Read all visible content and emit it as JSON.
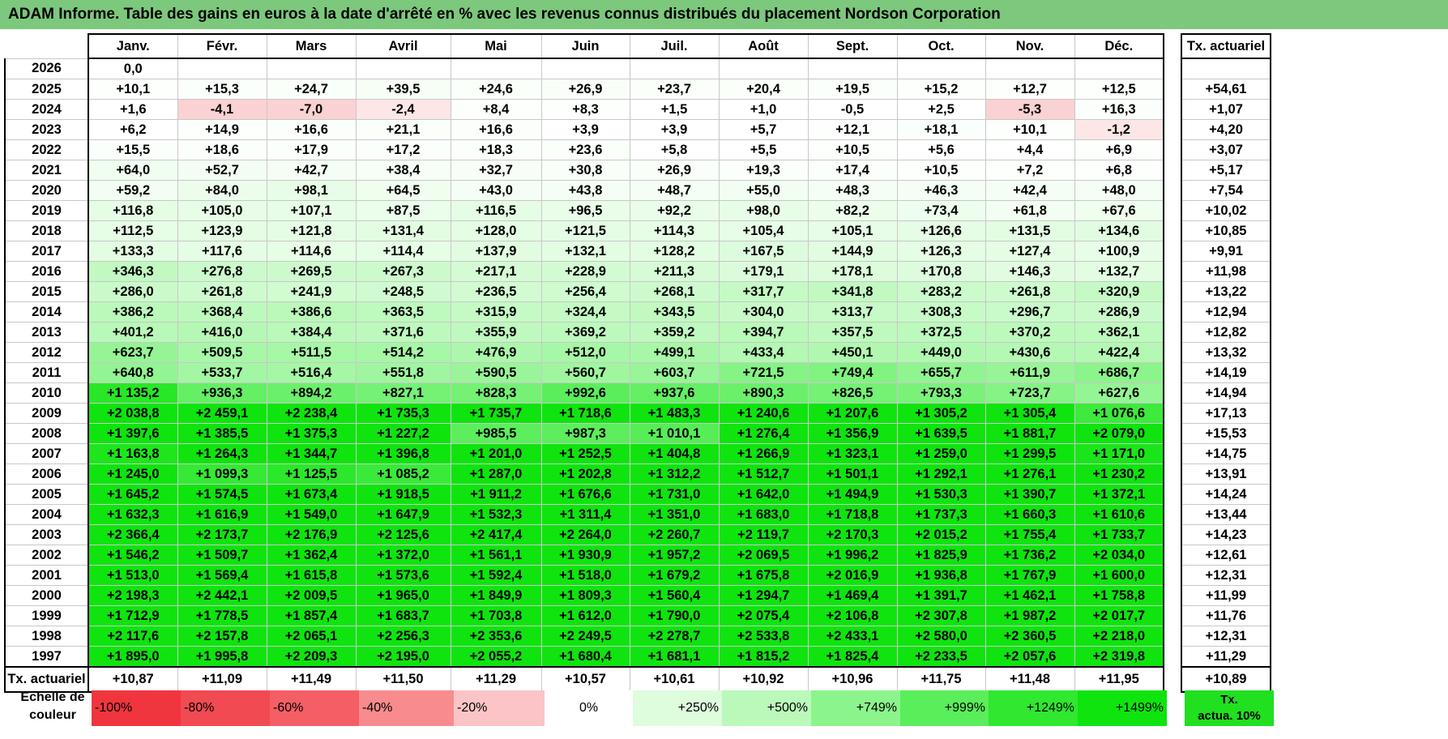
{
  "title": "ADAM Informe. Table des gains en euros à la date d'arrêté en % avec les revenus connus distribués du placement Nordson Corporation",
  "table": {
    "months": [
      "Janv.",
      "Févr.",
      "Mars",
      "Avril",
      "Mai",
      "Juin",
      "Juil.",
      "Août",
      "Sept.",
      "Oct.",
      "Nov.",
      "Déc."
    ],
    "annual_header": "Tx. actuariel",
    "rows": [
      {
        "year": "2026",
        "values": [
          "0,0",
          "",
          "",
          "",
          "",
          "",
          "",
          "",
          "",
          "",
          "",
          ""
        ],
        "annual": ""
      },
      {
        "year": "2025",
        "values": [
          "+10,1",
          "+15,3",
          "+24,7",
          "+39,5",
          "+24,6",
          "+26,9",
          "+23,7",
          "+20,4",
          "+19,5",
          "+15,2",
          "+12,7",
          "+12,5"
        ],
        "annual": "+54,61"
      },
      {
        "year": "2024",
        "values": [
          "+1,6",
          "-4,1",
          "-7,0",
          "-2,4",
          "+8,4",
          "+8,3",
          "+1,5",
          "+1,0",
          "-0,5",
          "+2,5",
          "-5,3",
          "+16,3"
        ],
        "annual": "+1,07"
      },
      {
        "year": "2023",
        "values": [
          "+6,2",
          "+14,9",
          "+16,6",
          "+21,1",
          "+16,6",
          "+3,9",
          "+3,9",
          "+5,7",
          "+12,1",
          "+18,1",
          "+10,1",
          "-1,2"
        ],
        "annual": "+4,20"
      },
      {
        "year": "2022",
        "values": [
          "+15,5",
          "+18,6",
          "+17,9",
          "+17,2",
          "+18,3",
          "+23,6",
          "+5,8",
          "+5,5",
          "+10,5",
          "+5,6",
          "+4,4",
          "+6,9"
        ],
        "annual": "+3,07"
      },
      {
        "year": "2021",
        "values": [
          "+64,0",
          "+52,7",
          "+42,7",
          "+38,4",
          "+32,7",
          "+30,8",
          "+26,9",
          "+19,3",
          "+17,4",
          "+10,5",
          "+7,2",
          "+6,8"
        ],
        "annual": "+5,17"
      },
      {
        "year": "2020",
        "values": [
          "+59,2",
          "+84,0",
          "+98,1",
          "+64,5",
          "+43,0",
          "+43,8",
          "+48,7",
          "+55,0",
          "+48,3",
          "+46,3",
          "+42,4",
          "+48,0"
        ],
        "annual": "+7,54"
      },
      {
        "year": "2019",
        "values": [
          "+116,8",
          "+105,0",
          "+107,1",
          "+87,5",
          "+116,5",
          "+96,5",
          "+92,2",
          "+98,0",
          "+82,2",
          "+73,4",
          "+61,8",
          "+67,6"
        ],
        "annual": "+10,02"
      },
      {
        "year": "2018",
        "values": [
          "+112,5",
          "+123,9",
          "+121,8",
          "+131,4",
          "+128,0",
          "+121,5",
          "+114,3",
          "+105,4",
          "+105,1",
          "+126,6",
          "+131,5",
          "+134,6"
        ],
        "annual": "+10,85"
      },
      {
        "year": "2017",
        "values": [
          "+133,3",
          "+117,6",
          "+114,6",
          "+114,4",
          "+137,9",
          "+132,1",
          "+128,2",
          "+167,5",
          "+144,9",
          "+126,3",
          "+127,4",
          "+100,9"
        ],
        "annual": "+9,91"
      },
      {
        "year": "2016",
        "values": [
          "+346,3",
          "+276,8",
          "+269,5",
          "+267,3",
          "+217,1",
          "+228,9",
          "+211,3",
          "+179,1",
          "+178,1",
          "+170,8",
          "+146,3",
          "+132,7"
        ],
        "annual": "+11,98"
      },
      {
        "year": "2015",
        "values": [
          "+286,0",
          "+261,8",
          "+241,9",
          "+248,5",
          "+236,5",
          "+256,4",
          "+268,1",
          "+317,7",
          "+341,8",
          "+283,2",
          "+261,8",
          "+320,9"
        ],
        "annual": "+13,22"
      },
      {
        "year": "2014",
        "values": [
          "+386,2",
          "+368,4",
          "+386,6",
          "+363,5",
          "+315,9",
          "+324,4",
          "+343,5",
          "+304,0",
          "+313,7",
          "+308,3",
          "+296,7",
          "+286,9"
        ],
        "annual": "+12,94"
      },
      {
        "year": "2013",
        "values": [
          "+401,2",
          "+416,0",
          "+384,4",
          "+371,6",
          "+355,9",
          "+369,2",
          "+359,2",
          "+394,7",
          "+357,5",
          "+372,5",
          "+370,2",
          "+362,1"
        ],
        "annual": "+12,82"
      },
      {
        "year": "2012",
        "values": [
          "+623,7",
          "+509,5",
          "+511,5",
          "+514,2",
          "+476,9",
          "+512,0",
          "+499,1",
          "+433,4",
          "+450,1",
          "+449,0",
          "+430,6",
          "+422,4"
        ],
        "annual": "+13,32"
      },
      {
        "year": "2011",
        "values": [
          "+640,8",
          "+533,7",
          "+516,4",
          "+551,8",
          "+590,5",
          "+560,7",
          "+603,7",
          "+721,5",
          "+749,4",
          "+655,7",
          "+611,9",
          "+686,7"
        ],
        "annual": "+14,19"
      },
      {
        "year": "2010",
        "values": [
          "+1 135,2",
          "+936,3",
          "+894,2",
          "+827,1",
          "+828,3",
          "+992,6",
          "+937,6",
          "+890,3",
          "+826,5",
          "+793,3",
          "+723,7",
          "+627,6"
        ],
        "annual": "+14,94"
      },
      {
        "year": "2009",
        "values": [
          "+2 038,8",
          "+2 459,1",
          "+2 238,4",
          "+1 735,3",
          "+1 735,7",
          "+1 718,6",
          "+1 483,3",
          "+1 240,6",
          "+1 207,6",
          "+1 305,2",
          "+1 305,4",
          "+1 076,6"
        ],
        "annual": "+17,13"
      },
      {
        "year": "2008",
        "values": [
          "+1 397,6",
          "+1 385,5",
          "+1 375,3",
          "+1 227,2",
          "+985,5",
          "+987,3",
          "+1 010,1",
          "+1 276,4",
          "+1 356,9",
          "+1 639,5",
          "+1 881,7",
          "+2 079,0"
        ],
        "annual": "+15,53"
      },
      {
        "year": "2007",
        "values": [
          "+1 163,8",
          "+1 264,3",
          "+1 344,7",
          "+1 396,8",
          "+1 201,0",
          "+1 252,5",
          "+1 404,8",
          "+1 266,9",
          "+1 323,1",
          "+1 259,0",
          "+1 299,5",
          "+1 171,0"
        ],
        "annual": "+14,75"
      },
      {
        "year": "2006",
        "values": [
          "+1 245,0",
          "+1 099,3",
          "+1 125,5",
          "+1 085,2",
          "+1 287,0",
          "+1 202,8",
          "+1 312,2",
          "+1 512,7",
          "+1 501,1",
          "+1 292,1",
          "+1 276,1",
          "+1 230,2"
        ],
        "annual": "+13,91"
      },
      {
        "year": "2005",
        "values": [
          "+1 645,2",
          "+1 574,5",
          "+1 673,4",
          "+1 918,5",
          "+1 911,2",
          "+1 676,6",
          "+1 731,0",
          "+1 642,0",
          "+1 494,9",
          "+1 530,3",
          "+1 390,7",
          "+1 372,1"
        ],
        "annual": "+14,24"
      },
      {
        "year": "2004",
        "values": [
          "+1 632,3",
          "+1 616,9",
          "+1 549,0",
          "+1 647,9",
          "+1 532,3",
          "+1 311,4",
          "+1 351,0",
          "+1 683,0",
          "+1 718,8",
          "+1 737,3",
          "+1 660,3",
          "+1 610,6"
        ],
        "annual": "+13,44"
      },
      {
        "year": "2003",
        "values": [
          "+2 366,4",
          "+2 173,7",
          "+2 176,9",
          "+2 125,6",
          "+2 417,4",
          "+2 264,0",
          "+2 260,7",
          "+2 119,7",
          "+2 170,3",
          "+2 015,2",
          "+1 755,4",
          "+1 733,7"
        ],
        "annual": "+14,23"
      },
      {
        "year": "2002",
        "values": [
          "+1 546,2",
          "+1 509,7",
          "+1 362,4",
          "+1 372,0",
          "+1 561,1",
          "+1 930,9",
          "+1 957,2",
          "+2 069,5",
          "+1 996,2",
          "+1 825,9",
          "+1 736,2",
          "+2 034,0"
        ],
        "annual": "+12,61"
      },
      {
        "year": "2001",
        "values": [
          "+1 513,0",
          "+1 569,4",
          "+1 615,8",
          "+1 573,6",
          "+1 592,4",
          "+1 518,0",
          "+1 679,2",
          "+1 675,8",
          "+2 016,9",
          "+1 936,8",
          "+1 767,9",
          "+1 600,0"
        ],
        "annual": "+12,31"
      },
      {
        "year": "2000",
        "values": [
          "+2 198,3",
          "+2 442,1",
          "+2 009,5",
          "+1 965,0",
          "+1 849,9",
          "+1 809,3",
          "+1 560,4",
          "+1 294,7",
          "+1 469,4",
          "+1 391,7",
          "+1 462,1",
          "+1 758,8"
        ],
        "annual": "+11,99"
      },
      {
        "year": "1999",
        "values": [
          "+1 712,9",
          "+1 778,5",
          "+1 857,4",
          "+1 683,7",
          "+1 703,8",
          "+1 612,0",
          "+1 790,0",
          "+2 075,4",
          "+2 106,8",
          "+2 307,8",
          "+1 987,2",
          "+2 017,7"
        ],
        "annual": "+11,76"
      },
      {
        "year": "1998",
        "values": [
          "+2 117,6",
          "+2 157,8",
          "+2 065,1",
          "+2 256,3",
          "+2 353,6",
          "+2 249,5",
          "+2 278,7",
          "+2 533,8",
          "+2 433,1",
          "+2 580,0",
          "+2 360,5",
          "+2 218,0"
        ],
        "annual": "+12,31"
      },
      {
        "year": "1997",
        "values": [
          "+1 895,0",
          "+1 995,8",
          "+2 209,3",
          "+2 195,0",
          "+2 055,2",
          "+1 680,4",
          "+1 681,1",
          "+1 815,2",
          "+1 825,4",
          "+2 233,5",
          "+2 057,6",
          "+2 319,8"
        ],
        "annual": "+11,29"
      }
    ],
    "footer": {
      "label": "Tx. actuariel",
      "values": [
        "+10,87",
        "+11,09",
        "+11,49",
        "+11,50",
        "+11,29",
        "+10,57",
        "+10,61",
        "+10,92",
        "+10,96",
        "+11,75",
        "+11,48",
        "+11,95"
      ],
      "annual": "+10,89"
    }
  },
  "scale": {
    "label_line1": "Echelle de",
    "label_line2": "couleur",
    "steps": [
      {
        "label": "-100%",
        "color": "#f0353f",
        "align": "left"
      },
      {
        "label": "-80%",
        "color": "#f14a52",
        "align": "left"
      },
      {
        "label": "-60%",
        "color": "#f55e64",
        "align": "left"
      },
      {
        "label": "-40%",
        "color": "#f88b8e",
        "align": "left"
      },
      {
        "label": "-20%",
        "color": "#fcc4c6",
        "align": "left"
      },
      {
        "label": "0%",
        "color": "#ffffff",
        "align": "center"
      },
      {
        "label": "+250%",
        "color": "#ddfddd",
        "align": "right"
      },
      {
        "label": "+500%",
        "color": "#bbf9bb",
        "align": "right"
      },
      {
        "label": "+749%",
        "color": "#8cf48c",
        "align": "right"
      },
      {
        "label": "+999%",
        "color": "#5aee5a",
        "align": "right"
      },
      {
        "label": "+1249%",
        "color": "#2fe82f",
        "align": "right"
      },
      {
        "label": "+1499%",
        "color": "#0fe40f",
        "align": "right"
      }
    ],
    "annual_line1": "Tx.",
    "annual_line2": "actua. 10%",
    "annual_color": "#20e020"
  },
  "colors": {
    "title_bg": "#7cc87c",
    "neg_light": "#fde6e6",
    "neg_mid": "#fbd2d3",
    "neutral": "#ffffff",
    "full_green": "#0fe40f"
  }
}
